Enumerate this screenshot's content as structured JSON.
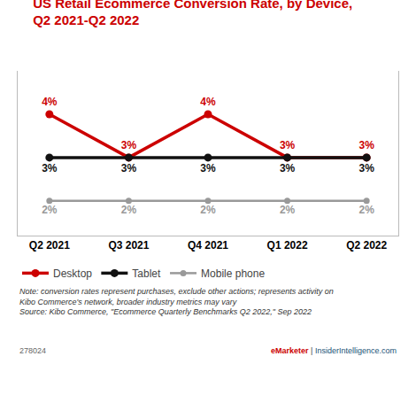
{
  "chart_data": {
    "type": "line",
    "title": {
      "text": "US Retail Ecommerce Conversion Rate, by Device,\nQ2 2021-Q2 2022",
      "color": "#cc0000"
    },
    "categories": [
      "Q2 2021",
      "Q3 2021",
      "Q4 2021",
      "Q1 2022",
      "Q2 2022"
    ],
    "series": [
      {
        "name": "Desktop",
        "color": "#cc0000",
        "values": [
          4,
          3,
          4,
          3,
          3
        ],
        "value_labels": [
          "4%",
          "3%",
          "4%",
          "3%",
          "3%"
        ]
      },
      {
        "name": "Tablet",
        "color": "#111111",
        "values": [
          3,
          3,
          3,
          3,
          3
        ],
        "value_labels": [
          "3%",
          "3%",
          "3%",
          "3%",
          "3%"
        ]
      },
      {
        "name": "Mobile phone",
        "color": "#999999",
        "values": [
          2,
          2,
          2,
          2,
          2
        ],
        "value_labels": [
          "2%",
          "2%",
          "2%",
          "2%",
          "2%"
        ]
      }
    ],
    "ylim": [
      1.2,
      5.0
    ],
    "tick_labels": "x",
    "grid": false,
    "legend": "bottom",
    "data_labels": true,
    "marker": "circle",
    "line_style": "solid",
    "annotations": [
      {
        "text": "Note: conversion rates represent purchases, exclude other actions; represents activity on\nKibo Commerce's network, broader industry metrics may vary\nSource: Kibo Commerce, \"Ecommerce Quarterly Benchmarks Q2 2022,\" Sep 2022",
        "color": "#333333"
      },
      {
        "text": "278024",
        "color": "#666666"
      },
      {
        "text": "eMarketer",
        "color": "#cc0000"
      },
      {
        "text": " | ",
        "color": "#444444"
      },
      {
        "text": "InsiderIntelligence.com",
        "color": "#1a5276"
      }
    ]
  }
}
